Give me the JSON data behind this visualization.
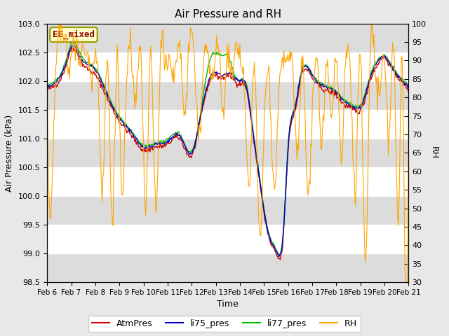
{
  "title": "Air Pressure and RH",
  "xlabel": "Time",
  "ylabel_left": "Air Pressure (kPa)",
  "ylabel_right": "RH",
  "ylim_left": [
    98.5,
    103.0
  ],
  "ylim_right": [
    30,
    100
  ],
  "yticks_left": [
    98.5,
    99.0,
    99.5,
    100.0,
    100.5,
    101.0,
    101.5,
    102.0,
    102.5,
    103.0
  ],
  "yticks_right": [
    30,
    35,
    40,
    45,
    50,
    55,
    60,
    65,
    70,
    75,
    80,
    85,
    90,
    95,
    100
  ],
  "annotation_text": "EE_mixed",
  "annotation_color": "#8B0000",
  "annotation_bg": "#FFFFCC",
  "annotation_border": "#999900",
  "colors": {
    "AtmPres": "#CC0000",
    "li75_pres": "#0000CC",
    "li77_pres": "#00BB00",
    "RH": "#FFA500"
  },
  "legend_labels": [
    "AtmPres",
    "li75_pres",
    "li77_pres",
    "RH"
  ],
  "bg_color": "#E8E8E8",
  "plot_bg": "#FFFFFF",
  "band_color": "#DCDCDC",
  "grid_color": "#FFFFFF",
  "num_points": 500,
  "figsize": [
    6.4,
    4.8
  ],
  "dpi": 100
}
